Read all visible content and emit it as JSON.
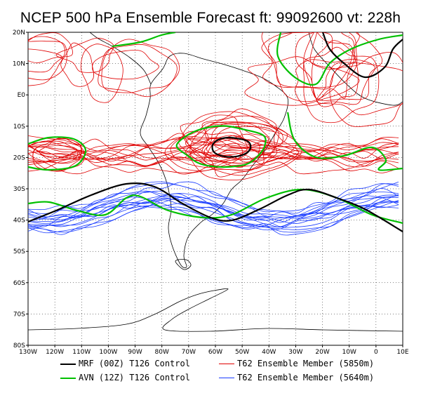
{
  "title": "NCEP 500 hPa Ensemble Forecast  ft: 99092600 vt: 228h",
  "lat_labels": [
    "20N",
    "10N",
    "E0",
    "10S",
    "20S",
    "30S",
    "40S",
    "50S",
    "60S",
    "70S",
    "80S"
  ],
  "lon_labels": [
    "130W",
    "120W",
    "110W",
    "100W",
    "90W",
    "80W",
    "70W",
    "60W",
    "50W",
    "40W",
    "30W",
    "20W",
    "10W",
    "0",
    "10E"
  ],
  "legend": [
    {
      "label": "MRF (00Z) T126 Control",
      "color": "#000000"
    },
    {
      "label": "AVN (12Z) T126 Control",
      "color": "#00c000"
    },
    {
      "label": "T62 Ensemble Member (5850m)",
      "color": "#e00000"
    },
    {
      "label": "T62 Ensemble Member (5640m)",
      "color": "#1a3cff"
    }
  ],
  "colors": {
    "mrf": "#000000",
    "avn": "#00c000",
    "ens_5850": "#e00000",
    "ens_5640": "#1a3cff"
  }
}
